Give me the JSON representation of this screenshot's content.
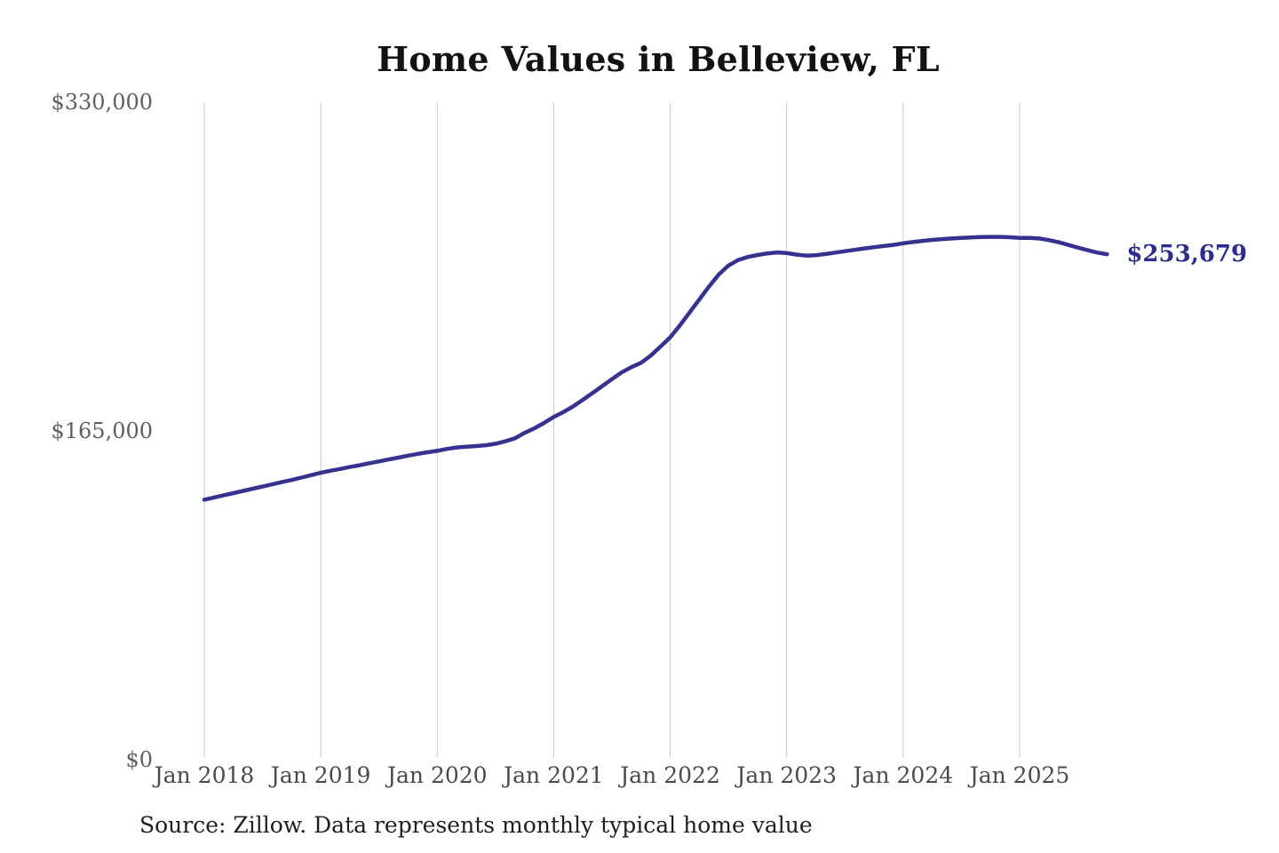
{
  "title": "Home Values in Belleview, FL",
  "source_note": "Source: Zillow. Data represents monthly typical home value",
  "colors": {
    "background": "#ffffff",
    "line": "#37318f",
    "end_label": "#2d2b8e",
    "gridline": "#c9c9c9",
    "title": "#121212",
    "y_tick": "#606060",
    "x_tick": "#4a4a4a",
    "source": "#202020"
  },
  "chart_data": {
    "type": "line",
    "title": "Home Values in Belleview, FL",
    "series_name": "Monthly typical home value (USD)",
    "ylim": [
      0,
      330000
    ],
    "grid": "vertical-only",
    "legend": "none",
    "last_value": 253679,
    "last_value_label": "$253,679",
    "y_ticks": [
      {
        "label": "$0",
        "value": 0
      },
      {
        "label": "$165,000",
        "value": 165000
      },
      {
        "label": "$330,000",
        "value": 330000
      }
    ],
    "x_ticks": [
      {
        "label": "Jan 2018",
        "month_index": 0
      },
      {
        "label": "Jan 2019",
        "month_index": 12
      },
      {
        "label": "Jan 2020",
        "month_index": 24
      },
      {
        "label": "Jan 2021",
        "month_index": 36
      },
      {
        "label": "Jan 2022",
        "month_index": 48
      },
      {
        "label": "Jan 2023",
        "month_index": 60
      },
      {
        "label": "Jan 2024",
        "month_index": 72
      },
      {
        "label": "Jan 2025",
        "month_index": 84
      }
    ],
    "x": [
      "2018-01",
      "2018-02",
      "2018-03",
      "2018-04",
      "2018-05",
      "2018-06",
      "2018-07",
      "2018-08",
      "2018-09",
      "2018-10",
      "2018-11",
      "2018-12",
      "2019-01",
      "2019-02",
      "2019-03",
      "2019-04",
      "2019-05",
      "2019-06",
      "2019-07",
      "2019-08",
      "2019-09",
      "2019-10",
      "2019-11",
      "2019-12",
      "2020-01",
      "2020-02",
      "2020-03",
      "2020-04",
      "2020-05",
      "2020-06",
      "2020-07",
      "2020-08",
      "2020-09",
      "2020-10",
      "2020-11",
      "2020-12",
      "2021-01",
      "2021-02",
      "2021-03",
      "2021-04",
      "2021-05",
      "2021-06",
      "2021-07",
      "2021-08",
      "2021-09",
      "2021-10",
      "2021-11",
      "2021-12",
      "2022-01",
      "2022-02",
      "2022-03",
      "2022-04",
      "2022-05",
      "2022-06",
      "2022-07",
      "2022-08",
      "2022-09",
      "2022-10",
      "2022-11",
      "2022-12",
      "2023-01",
      "2023-02",
      "2023-03",
      "2023-04",
      "2023-05",
      "2023-06",
      "2023-07",
      "2023-08",
      "2023-09",
      "2023-10",
      "2023-11",
      "2023-12",
      "2024-01",
      "2024-02",
      "2024-03",
      "2024-04",
      "2024-05",
      "2024-06",
      "2024-07",
      "2024-08",
      "2024-09",
      "2024-10",
      "2024-11",
      "2024-12",
      "2025-01",
      "2025-02",
      "2025-03",
      "2025-04",
      "2025-05",
      "2025-06",
      "2025-07",
      "2025-08",
      "2025-09",
      "2025-10"
    ],
    "values": [
      130500,
      131600,
      132700,
      133800,
      134900,
      136000,
      137100,
      138200,
      139300,
      140400,
      141600,
      142800,
      144000,
      145000,
      145900,
      146900,
      147800,
      148800,
      149700,
      150700,
      151600,
      152600,
      153500,
      154300,
      155000,
      156000,
      156700,
      157100,
      157400,
      157800,
      158600,
      159800,
      161300,
      164000,
      166300,
      169000,
      172000,
      174500,
      177300,
      180600,
      184000,
      187500,
      191000,
      194400,
      197000,
      199200,
      202800,
      207300,
      212000,
      218000,
      224500,
      231000,
      237500,
      243500,
      248000,
      250800,
      252300,
      253300,
      254100,
      254600,
      254300,
      253500,
      253000,
      253200,
      253800,
      254500,
      255200,
      255900,
      256600,
      257200,
      257800,
      258400,
      259200,
      259800,
      260400,
      260900,
      261300,
      261600,
      261900,
      262100,
      262300,
      262400,
      262400,
      262200,
      261900,
      261900,
      261600,
      260800,
      259700,
      258400,
      257000,
      255700,
      254500,
      253679
    ]
  }
}
